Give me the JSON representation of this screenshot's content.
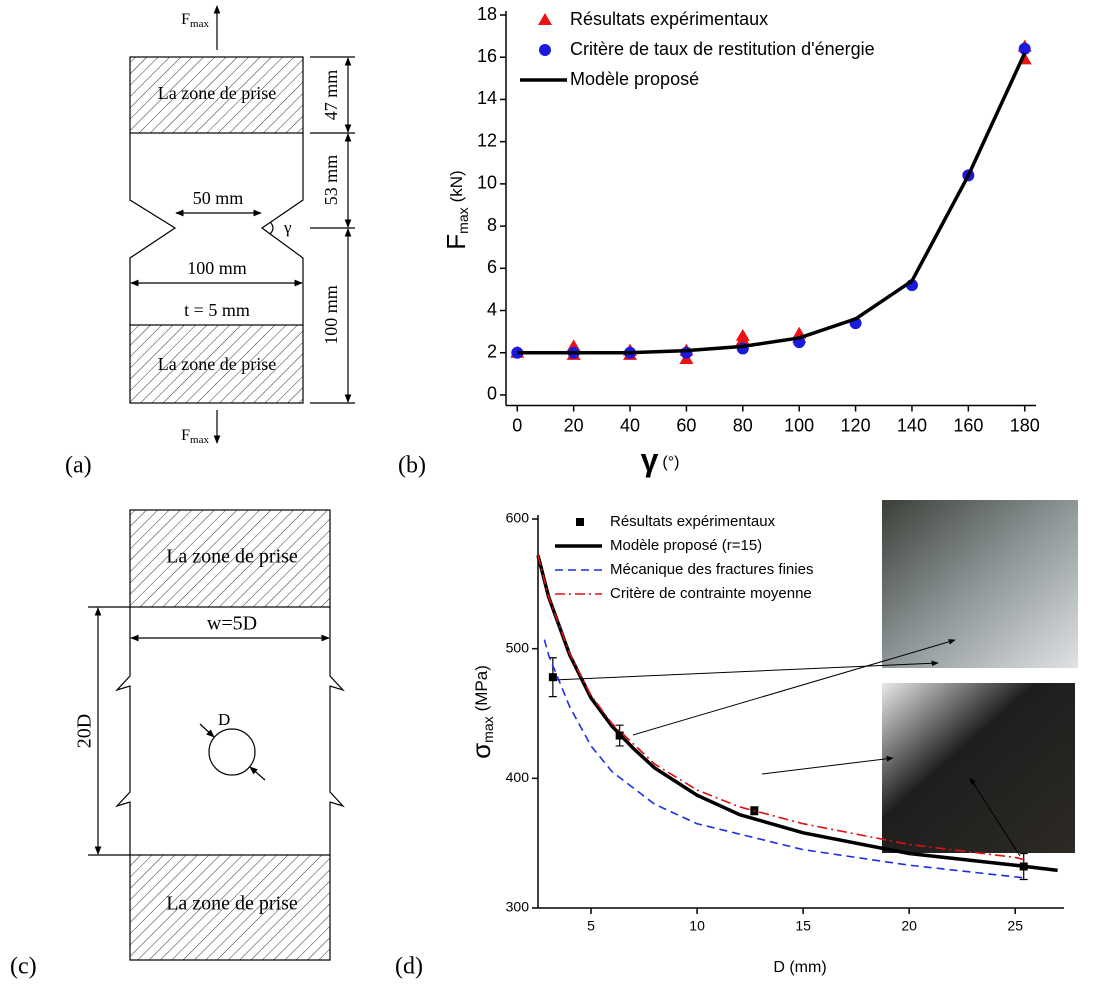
{
  "panels": {
    "a": "(a)",
    "b": "(b)",
    "c": "(c)",
    "d": "(d)"
  },
  "diagram_a": {
    "force_top": {
      "symbol": "F",
      "sub": "max"
    },
    "force_bottom": {
      "symbol": "F",
      "sub": "max"
    },
    "grip_top": "La zone de prise",
    "grip_bottom": "La zone de prise",
    "dim_grip": "47 mm",
    "dim_taper": "53 mm",
    "dim_lower": "100 mm",
    "notch_width": "50 mm",
    "angle": "γ",
    "width": "100 mm",
    "thickness": "t = 5 mm"
  },
  "diagram_c": {
    "grip_top": "La zone de prise",
    "grip_bottom": "La zone de prise",
    "width": "w=5D",
    "length": "20D",
    "hole": "D"
  },
  "chart_data": [
    {
      "type": "line",
      "xlabel": {
        "symbol": "γ",
        "unit": "(°)"
      },
      "ylabel": {
        "symbol": "F",
        "sub": "max",
        "unit": "(kN)"
      },
      "xlim": [
        -4,
        184
      ],
      "ylim": [
        -0.5,
        18
      ],
      "xticks": [
        0,
        20,
        40,
        60,
        80,
        100,
        120,
        140,
        160,
        180
      ],
      "yticks": [
        0,
        2,
        4,
        6,
        8,
        10,
        12,
        14,
        16,
        18
      ],
      "legend": "upper left",
      "series": [
        {
          "name": "Résultats expérimentaux",
          "color": "#ee1111",
          "marker": "triangle",
          "x": [
            0,
            20,
            20,
            40,
            40,
            60,
            60,
            80,
            80,
            100,
            100,
            180,
            180
          ],
          "values": [
            2.0,
            2.3,
            1.9,
            2.1,
            1.9,
            2.1,
            1.7,
            2.8,
            2.6,
            2.9,
            2.7,
            16.5,
            15.9
          ]
        },
        {
          "name": "Critère de taux de restitution d'énergie",
          "color": "#1a1adf",
          "marker": "circle",
          "x": [
            0,
            20,
            40,
            60,
            80,
            100,
            120,
            140,
            160,
            180
          ],
          "values": [
            2.0,
            2.0,
            2.0,
            2.0,
            2.2,
            2.5,
            3.4,
            5.2,
            10.4,
            16.4
          ]
        },
        {
          "name": "Modèle proposé",
          "color": "#000000",
          "line": "solid",
          "x": [
            0,
            20,
            40,
            60,
            80,
            100,
            120,
            140,
            160,
            180
          ],
          "values": [
            2.0,
            2.0,
            2.0,
            2.1,
            2.3,
            2.7,
            3.6,
            5.4,
            10.4,
            16.2
          ]
        }
      ]
    },
    {
      "type": "line",
      "xlabel": {
        "text": "D (mm)"
      },
      "ylabel": {
        "symbol": "σ",
        "sub": "max",
        "unit": "(MPa)"
      },
      "xlim": [
        2.5,
        27.3
      ],
      "ylim": [
        300,
        600
      ],
      "xticks": [
        5,
        10,
        15,
        20,
        25
      ],
      "yticks": [
        300,
        400,
        500,
        600
      ],
      "legend": "upper left",
      "series": [
        {
          "name": "Résultats expérimentaux",
          "color": "#000000",
          "marker": "square",
          "x": [
            3.2,
            6.35,
            12.7,
            25.4
          ],
          "values": [
            478,
            433,
            375,
            332
          ],
          "errors": [
            15,
            8,
            3,
            10
          ]
        },
        {
          "name": "Modèle proposé (r=15)",
          "color": "#000000",
          "line": "solid",
          "x": [
            2.5,
            3,
            4,
            5,
            6,
            7,
            8,
            10,
            12,
            15,
            20,
            25,
            27
          ],
          "values": [
            572,
            540,
            495,
            462,
            440,
            423,
            408,
            387,
            372,
            358,
            342,
            333,
            329
          ]
        },
        {
          "name": "Mécanique des fractures finies",
          "color": "#1a2ee6",
          "line": "dashed",
          "x": [
            2.8,
            3,
            4,
            5,
            6,
            8,
            10,
            15,
            20,
            25,
            25.5
          ],
          "values": [
            507,
            495,
            455,
            425,
            405,
            380,
            365,
            345,
            333,
            324,
            323
          ]
        },
        {
          "name": "Critère de contrainte moyenne",
          "color": "#e01010",
          "line": "dashdot",
          "x": [
            2.5,
            3,
            4,
            5,
            6,
            8,
            10,
            12,
            15,
            20,
            25,
            25.5
          ],
          "values": [
            572,
            540,
            496,
            464,
            442,
            411,
            391,
            378,
            365,
            349,
            339,
            337
          ]
        }
      ]
    }
  ]
}
